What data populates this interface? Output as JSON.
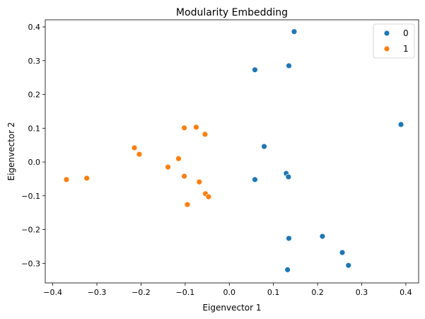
{
  "chart_data": {
    "type": "scatter",
    "title": "Modularity Embedding",
    "xlabel": "Eigenvector 1",
    "ylabel": "Eigenvector 2",
    "xlim": [
      -0.417,
      0.429
    ],
    "ylim": [
      -0.358,
      0.421
    ],
    "xticks": [
      -0.4,
      -0.3,
      -0.2,
      -0.1,
      0.0,
      0.1,
      0.2,
      0.3,
      0.4
    ],
    "xtick_labels": [
      "−0.4",
      "−0.3",
      "−0.2",
      "−0.1",
      "0.0",
      "0.1",
      "0.2",
      "0.3",
      "0.4"
    ],
    "yticks": [
      -0.3,
      -0.2,
      -0.1,
      0.0,
      0.1,
      0.2,
      0.3,
      0.4
    ],
    "ytick_labels": [
      "−0.3",
      "−0.2",
      "−0.1",
      "0.0",
      "0.1",
      "0.2",
      "0.3",
      "0.4"
    ],
    "grid": false,
    "legend_position": "top-right",
    "series": [
      {
        "name": "0",
        "color": "#1f77b4",
        "points": [
          [
            0.147,
            0.386
          ],
          [
            0.058,
            0.273
          ],
          [
            0.135,
            0.285
          ],
          [
            0.389,
            0.111
          ],
          [
            0.079,
            0.046
          ],
          [
            0.058,
            -0.052
          ],
          [
            0.129,
            -0.034
          ],
          [
            0.134,
            -0.044
          ],
          [
            0.211,
            -0.22
          ],
          [
            0.135,
            -0.226
          ],
          [
            0.256,
            -0.268
          ],
          [
            0.27,
            -0.306
          ],
          [
            0.132,
            -0.319
          ]
        ]
      },
      {
        "name": "1",
        "color": "#ff7f0e",
        "points": [
          [
            -0.369,
            -0.052
          ],
          [
            -0.323,
            -0.048
          ],
          [
            -0.215,
            0.042
          ],
          [
            -0.204,
            0.023
          ],
          [
            -0.139,
            -0.015
          ],
          [
            -0.115,
            0.01
          ],
          [
            -0.102,
            0.101
          ],
          [
            -0.102,
            -0.042
          ],
          [
            -0.075,
            0.103
          ],
          [
            -0.055,
            0.082
          ],
          [
            -0.068,
            -0.059
          ],
          [
            -0.095,
            -0.126
          ],
          [
            -0.054,
            -0.094
          ],
          [
            -0.047,
            -0.103
          ]
        ]
      }
    ]
  }
}
